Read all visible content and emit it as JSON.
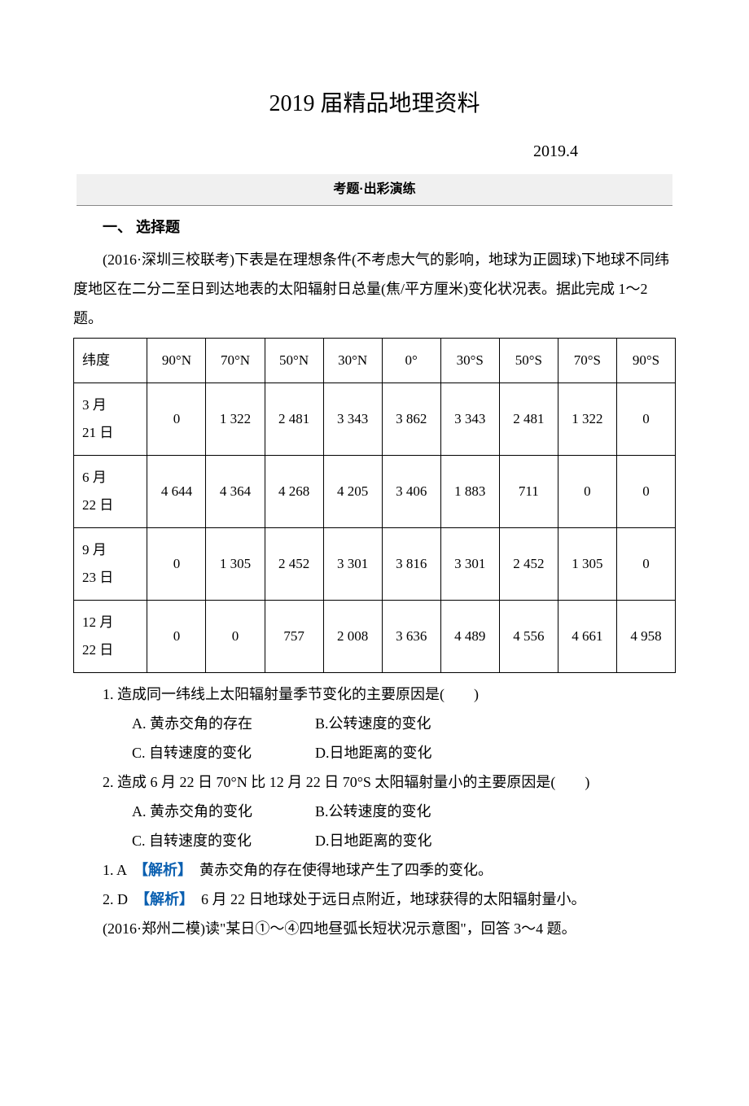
{
  "title": "2019 届精品地理资料",
  "date": "2019.4",
  "banner": "考题·出彩演练",
  "section1": "一、 选择题",
  "intro1": "(2016·深圳三校联考)下表是在理想条件(不考虑大气的影响，地球为正圆球)下地球不同纬度地区在二分二至日到达地表的太阳辐射日总量(焦/平方厘米)变化状况表。据此完成 1～2 题。",
  "table": {
    "headers": [
      "纬度",
      "90°N",
      "70°N",
      "50°N",
      "30°N",
      "0°",
      "30°S",
      "50°S",
      "70°S",
      "90°S"
    ],
    "rows": [
      [
        "3 月\n21 日",
        "0",
        "1 322",
        "2 481",
        "3 343",
        "3 862",
        "3 343",
        "2 481",
        "1 322",
        "0"
      ],
      [
        "6 月\n22 日",
        "4 644",
        "4 364",
        "4 268",
        "4 205",
        "3 406",
        "1 883",
        "711",
        "0",
        "0"
      ],
      [
        "9 月\n23 日",
        "0",
        "1 305",
        "2 452",
        "3 301",
        "3 816",
        "3 301",
        "2 452",
        "1 305",
        "0"
      ],
      [
        "12 月\n22 日",
        "0",
        "0",
        "757",
        "2 008",
        "3 636",
        "4 489",
        "4 556",
        "4 661",
        "4 958"
      ]
    ]
  },
  "q1": {
    "stem": "1. 造成同一纬线上太阳辐射量季节变化的主要原因是(　　)",
    "a": "A. 黄赤交角的存在",
    "b": "B.公转速度的变化",
    "c": "C. 自转速度的变化",
    "d": "D.日地距离的变化"
  },
  "q2": {
    "stem": "2. 造成 6 月 22 日 70°N 比 12 月 22 日 70°S 太阳辐射量小的主要原因是(　　)",
    "a": "A. 黄赤交角的变化",
    "b": "B.公转速度的变化",
    "c": "C. 自转速度的变化",
    "d": "D.日地距离的变化"
  },
  "ans1": {
    "prefix": "1. A　",
    "tag": "【解析】",
    "text": "　黄赤交角的存在使得地球产生了四季的变化。"
  },
  "ans2": {
    "prefix": "2. D　",
    "tag": "【解析】",
    "text": "　6 月 22 日地球处于远日点附近，地球获得的太阳辐射量小。"
  },
  "intro2": "(2016·郑州二模)读\"某日①～④四地昼弧长短状况示意图\"，回答 3～4 题。"
}
